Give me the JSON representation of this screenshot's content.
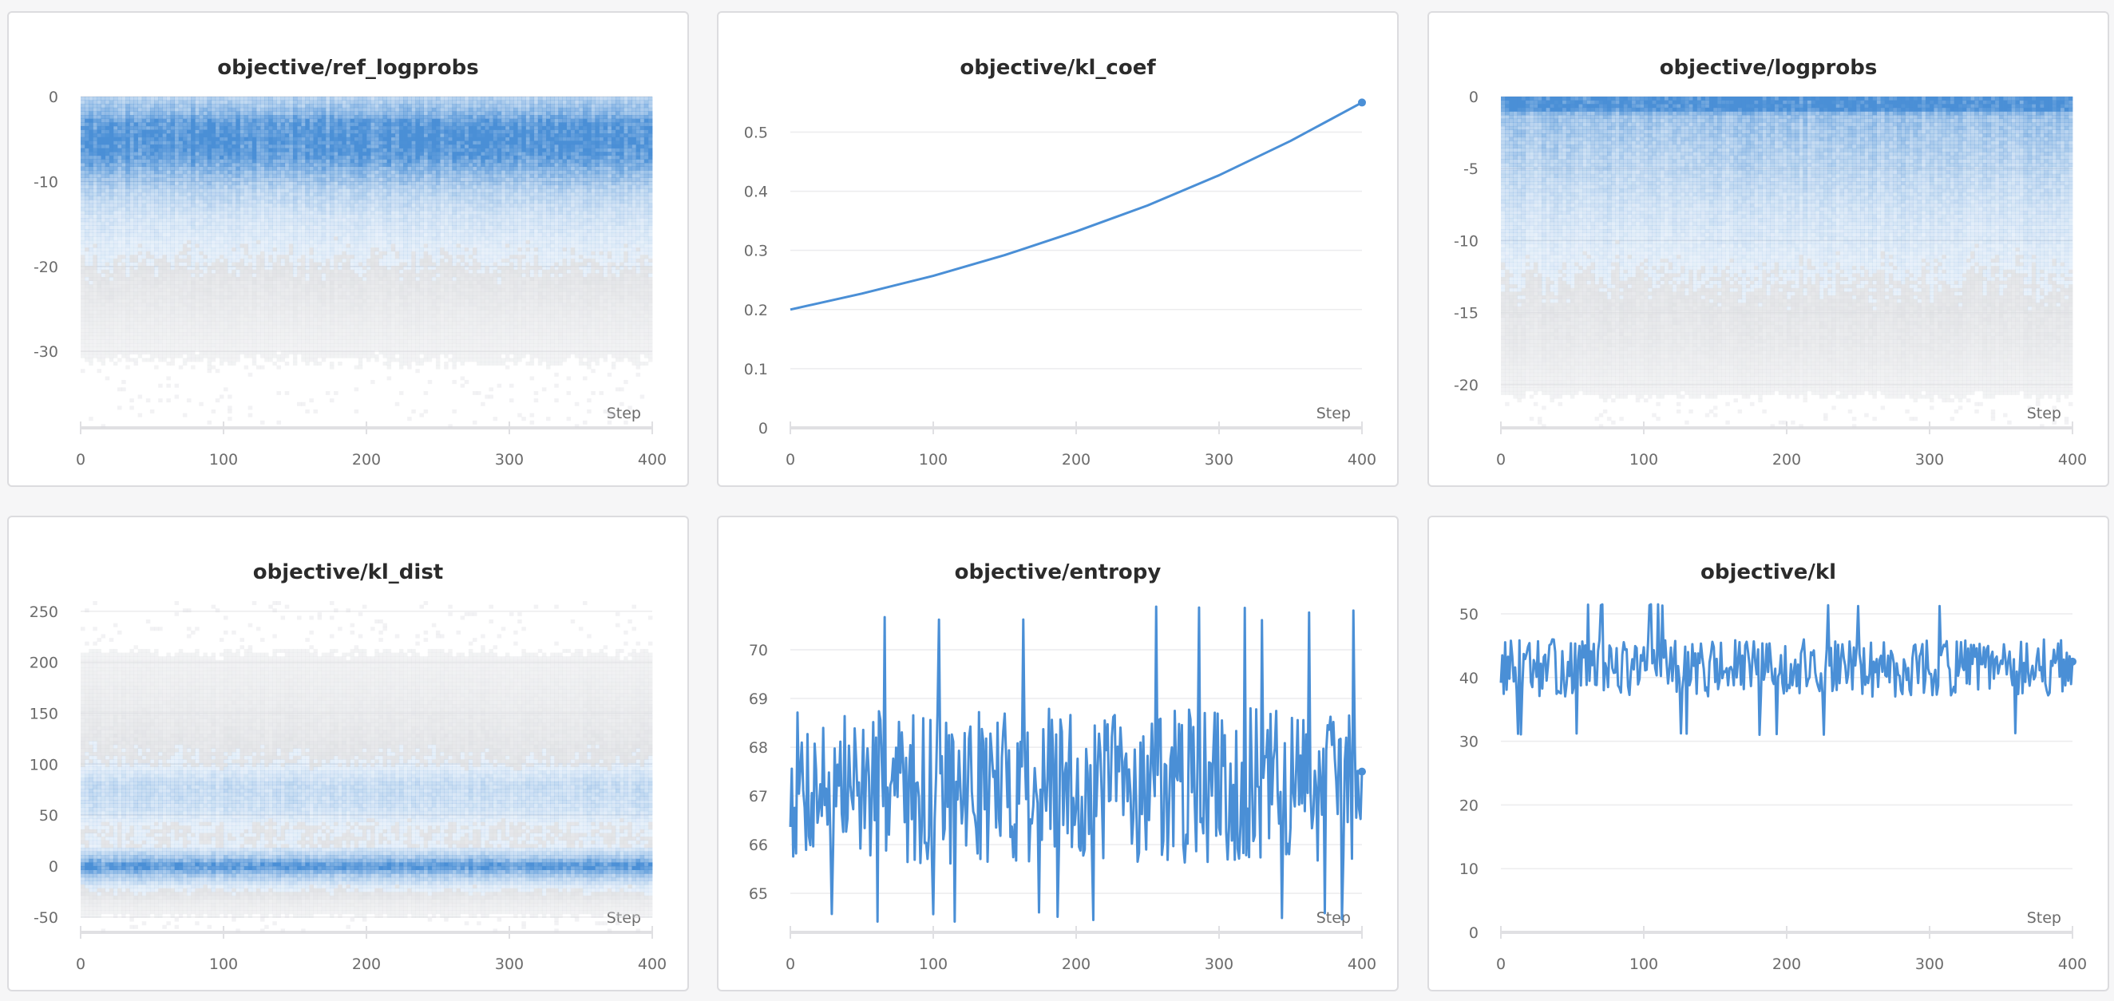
{
  "panels": [
    {
      "title": "objective/ref_logprobs",
      "chart_data": {
        "type": "heatmap",
        "title": "objective/ref_logprobs",
        "xlabel": "Step",
        "xlim": [
          0,
          400
        ],
        "ylim": [
          -39,
          0
        ],
        "yticks": [
          "0",
          "-10",
          "-20",
          "-30"
        ],
        "ytick_values": [
          0,
          -10,
          -20,
          -30
        ],
        "xticks": [
          "0",
          "100",
          "200",
          "300",
          "400"
        ],
        "xtick_values": [
          0,
          100,
          200,
          300,
          400
        ],
        "grid": true,
        "color": "#4a8fd6",
        "density_profile": [
          [
            0,
            0.35
          ],
          [
            -2,
            0.6
          ],
          [
            -3,
            0.85
          ],
          [
            -5,
            0.95
          ],
          [
            -7,
            0.85
          ],
          [
            -9,
            0.55
          ],
          [
            -11,
            0.35
          ],
          [
            -14,
            0.22
          ],
          [
            -18,
            0.14
          ],
          [
            -22,
            0.09
          ],
          [
            -26,
            0.05
          ],
          [
            -30,
            0.02
          ],
          [
            -35,
            0.0
          ]
        ]
      }
    },
    {
      "title": "objective/kl_coef",
      "chart_data": {
        "type": "line",
        "title": "objective/kl_coef",
        "xlabel": "Step",
        "xlim": [
          0,
          400
        ],
        "ylim": [
          0,
          0.56
        ],
        "yticks": [
          "0",
          "0.1",
          "0.2",
          "0.3",
          "0.4",
          "0.5"
        ],
        "ytick_values": [
          0,
          0.1,
          0.2,
          0.3,
          0.4,
          0.5
        ],
        "xticks": [
          "0",
          "100",
          "200",
          "300",
          "400"
        ],
        "xtick_values": [
          0,
          100,
          200,
          300,
          400
        ],
        "grid": true,
        "color": "#4a8fd6",
        "series": [
          {
            "x": [
              0,
              50,
              100,
              150,
              200,
              250,
              300,
              350,
              400
            ],
            "y": [
              0.2,
              0.227,
              0.257,
              0.292,
              0.332,
              0.376,
              0.427,
              0.485,
              0.55
            ]
          }
        ]
      }
    },
    {
      "title": "objective/logprobs",
      "chart_data": {
        "type": "heatmap",
        "title": "objective/logprobs",
        "xlabel": "Step",
        "xlim": [
          0,
          400
        ],
        "ylim": [
          -23,
          0
        ],
        "yticks": [
          "0",
          "-5",
          "-10",
          "-15",
          "-20"
        ],
        "ytick_values": [
          0,
          -5,
          -10,
          -15,
          -20
        ],
        "xticks": [
          "0",
          "100",
          "200",
          "300",
          "400"
        ],
        "xtick_values": [
          0,
          100,
          200,
          300,
          400
        ],
        "grid": true,
        "color": "#4a8fd6",
        "density_profile": [
          [
            0,
            1.0
          ],
          [
            -1,
            0.95
          ],
          [
            -1.2,
            0.5
          ],
          [
            -3,
            0.42
          ],
          [
            -5,
            0.33
          ],
          [
            -8,
            0.22
          ],
          [
            -11,
            0.15
          ],
          [
            -14,
            0.1
          ],
          [
            -17,
            0.07
          ],
          [
            -19,
            0.04
          ],
          [
            -22,
            0.0
          ]
        ]
      }
    },
    {
      "title": "objective/kl_dist",
      "chart_data": {
        "type": "heatmap",
        "title": "objective/kl_dist",
        "xlabel": "Step",
        "xlim": [
          0,
          400
        ],
        "ylim": [
          -65,
          260
        ],
        "yticks": [
          "250",
          "200",
          "150",
          "100",
          "50",
          "0",
          "-50"
        ],
        "ytick_values": [
          250,
          200,
          150,
          100,
          50,
          0,
          -50
        ],
        "xticks": [
          "0",
          "100",
          "200",
          "300",
          "400"
        ],
        "xtick_values": [
          0,
          100,
          200,
          300,
          400
        ],
        "grid": true,
        "color": "#4a8fd6",
        "density_profile": [
          [
            -55,
            0.0
          ],
          [
            -35,
            0.05
          ],
          [
            -20,
            0.15
          ],
          [
            -8,
            0.45
          ],
          [
            0,
            0.95
          ],
          [
            8,
            0.45
          ],
          [
            20,
            0.12
          ],
          [
            40,
            0.12
          ],
          [
            60,
            0.25
          ],
          [
            80,
            0.28
          ],
          [
            100,
            0.12
          ],
          [
            130,
            0.08
          ],
          [
            150,
            0.06
          ],
          [
            190,
            0.03
          ],
          [
            230,
            0.0
          ]
        ]
      }
    },
    {
      "title": "objective/entropy",
      "chart_data": {
        "type": "line",
        "title": "objective/entropy",
        "xlabel": "Step",
        "xlim": [
          0,
          400
        ],
        "ylim": [
          64.2,
          71.0
        ],
        "yticks": [
          "70",
          "69",
          "68",
          "67",
          "66",
          "65"
        ],
        "ytick_values": [
          70,
          69,
          68,
          67,
          66,
          65
        ],
        "xticks": [
          "0",
          "100",
          "200",
          "300",
          "400"
        ],
        "xtick_values": [
          0,
          100,
          200,
          300,
          400
        ],
        "grid": true,
        "color": "#4a8fd6",
        "series": [
          {
            "generator": {
              "n": 400,
              "mean": 67.2,
              "amplitude": 1.6,
              "seed": 7,
              "min": 64.35,
              "max": 70.9,
              "last": 67.5
            }
          }
        ]
      }
    },
    {
      "title": "objective/kl",
      "chart_data": {
        "type": "line",
        "title": "objective/kl",
        "xlabel": "Step",
        "xlim": [
          0,
          400
        ],
        "ylim": [
          0,
          52
        ],
        "yticks": [
          "50",
          "40",
          "30",
          "20",
          "10",
          "0"
        ],
        "ytick_values": [
          50,
          40,
          30,
          20,
          10,
          0
        ],
        "xticks": [
          "0",
          "100",
          "200",
          "300",
          "400"
        ],
        "xtick_values": [
          0,
          100,
          200,
          300,
          400
        ],
        "grid": true,
        "color": "#4a8fd6",
        "series": [
          {
            "generator": {
              "n": 400,
              "mean": 41.5,
              "amplitude": 4.5,
              "seed": 13,
              "min": 31,
              "max": 51.5,
              "last": 42.5
            }
          }
        ]
      }
    }
  ]
}
